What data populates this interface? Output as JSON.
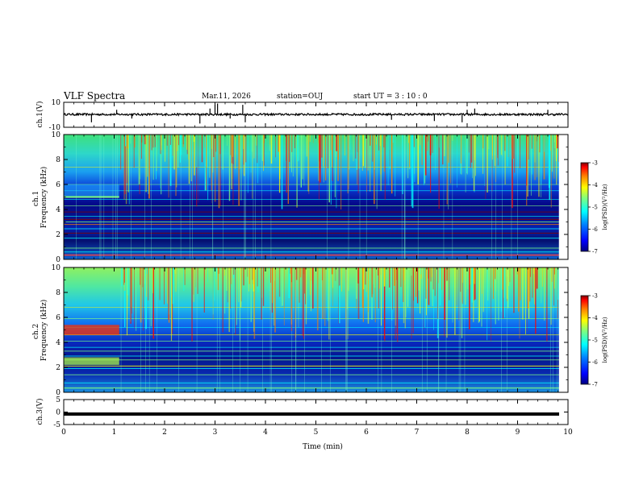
{
  "header": {
    "title": "VLF Spectra",
    "date": "Mar.11, 2026",
    "station": "station=OUJ",
    "start_time": "start  UT =  3 : 10 : 0"
  },
  "chart_data": [
    {
      "type": "line",
      "panel": "ch1-waveform",
      "ylabel": "ch.1(V)",
      "ylim": [
        -10,
        10
      ],
      "yticks": [
        "10",
        "-10"
      ],
      "xlim": [
        0,
        10
      ],
      "baseline": 0.3
    },
    {
      "type": "heatmap",
      "panel": "ch1-spectrogram",
      "ylabel": "ch.1 Frequency (kHz)",
      "ylim": [
        0,
        10
      ],
      "yticks": [
        "0",
        "2",
        "4",
        "6",
        "8",
        "10"
      ],
      "xlim": [
        0,
        10
      ],
      "colorbar": {
        "label": "log(PSD)(V²/Hz)",
        "range": [
          -7,
          -3
        ],
        "ticks": [
          "-3",
          "-4",
          "-5",
          "-6",
          "-7"
        ]
      }
    },
    {
      "type": "heatmap",
      "panel": "ch2-spectrogram",
      "ylabel": "ch.2 Frequency (kHz)",
      "ylim": [
        0,
        10
      ],
      "yticks": [
        "0",
        "2",
        "4",
        "6",
        "8",
        "10"
      ],
      "xlim": [
        0,
        10
      ],
      "colorbar": {
        "label": "log(PSD)(V²/Hz)",
        "range": [
          -7,
          -3
        ],
        "ticks": [
          "-3",
          "-4",
          "-5",
          "-6",
          "-7"
        ]
      }
    },
    {
      "type": "line",
      "panel": "ch3-waveform",
      "ylabel": "ch.3(V)",
      "ylim": [
        -5,
        5
      ],
      "yticks": [
        "5",
        "0",
        "-5"
      ],
      "xlim": [
        0,
        10
      ],
      "baseline": -0.8
    }
  ],
  "x_axis": {
    "label": "Time  (min)",
    "ticks": [
      "0",
      "1",
      "2",
      "3",
      "4",
      "5",
      "6",
      "7",
      "8",
      "9",
      "10"
    ]
  },
  "colors": {
    "colormap": [
      "#00007f",
      "#0000ff",
      "#007fff",
      "#00ffff",
      "#7fff7f",
      "#ffff00",
      "#ff7f00",
      "#ff0000",
      "#7f0000"
    ]
  }
}
